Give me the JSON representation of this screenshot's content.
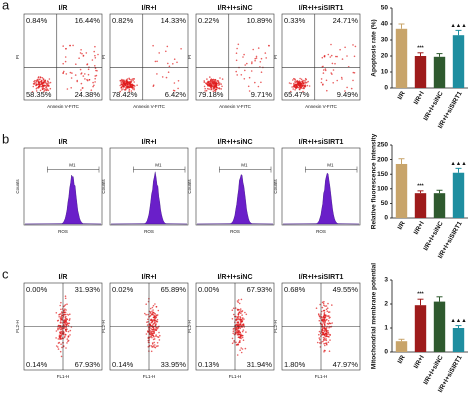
{
  "flow_rows": [
    {
      "panel": "a",
      "x_label": "Annexin V-FITC",
      "y_label": "PI",
      "plots": [
        {
          "title": "I/R",
          "quadrants": [
            "0.84%",
            "16.44%",
            "58.35%",
            "24.38%"
          ]
        },
        {
          "title": "I/R+I",
          "quadrants": [
            "0.82%",
            "14.33%",
            "78.42%",
            "6.42%"
          ]
        },
        {
          "title": "I/R+I+siNC",
          "quadrants": [
            "0.22%",
            "10.89%",
            "79.18%",
            "9.71%"
          ]
        },
        {
          "title": "I/R+I+siSIRT1",
          "quadrants": [
            "0.33%",
            "24.71%",
            "65.47%",
            "9.49%"
          ]
        }
      ]
    },
    {
      "panel": "b",
      "x_label": "ROS",
      "y_label": "Counts",
      "plots": [
        {
          "title": "I/R",
          "gate": "M1"
        },
        {
          "title": "I/R+I",
          "gate": "M1"
        },
        {
          "title": "I/R+I+siNC",
          "gate": "M1"
        },
        {
          "title": "I/R+I+siSIRT1",
          "gate": "M1"
        }
      ]
    },
    {
      "panel": "c",
      "x_label": "FL1-H",
      "y_label": "FL2-H",
      "plots": [
        {
          "title": "I/R",
          "quadrants": [
            "0.00%",
            "31.93%",
            "0.14%",
            "67.93%"
          ]
        },
        {
          "title": "I/R+I",
          "quadrants": [
            "0.02%",
            "65.89%",
            "0.14%",
            "33.95%"
          ]
        },
        {
          "title": "I/R+I+siNC",
          "quadrants": [
            "0.00%",
            "67.93%",
            "0.13%",
            "31.94%"
          ]
        },
        {
          "title": "I/R+I+siSIRT1",
          "quadrants": [
            "0.68%",
            "49.55%",
            "1.80%",
            "47.97%"
          ]
        }
      ]
    }
  ],
  "chart_data": [
    {
      "type": "bar",
      "y_label": "Apoptosis rate (%)",
      "categories": [
        "I/R",
        "I/R+I",
        "I/R+I+siNC",
        "I/R+I+siSIRT1"
      ],
      "values": [
        37,
        20,
        19.5,
        33
      ],
      "errors": [
        3,
        2,
        2,
        3
      ],
      "colors": [
        "#c8a46a",
        "#9e1b1b",
        "#2f5a2f",
        "#1f8ea0"
      ],
      "annotations": [
        null,
        "***",
        null,
        "▲▲▲"
      ],
      "ylim": [
        0,
        50
      ],
      "yticks": [
        0,
        10,
        20,
        30,
        40,
        50
      ]
    },
    {
      "type": "bar",
      "y_label": "Relative fluorescence intensity",
      "categories": [
        "I/R",
        "I/R+I",
        "I/R+I+siNC",
        "I/R+I+siSIRT1"
      ],
      "values": [
        185,
        85,
        85,
        155
      ],
      "errors": [
        18,
        8,
        10,
        15
      ],
      "colors": [
        "#c8a46a",
        "#9e1b1b",
        "#2f5a2f",
        "#1f8ea0"
      ],
      "annotations": [
        null,
        "***",
        null,
        "▲▲▲"
      ],
      "ylim": [
        0,
        250
      ],
      "yticks": [
        0,
        50,
        100,
        150,
        200,
        250
      ]
    },
    {
      "type": "bar",
      "y_label": "Mitochondrial membrane potential",
      "categories": [
        "I/R",
        "I/R+I",
        "I/R+I+siNC",
        "I/R+I+siSIRT1"
      ],
      "values": [
        0.45,
        1.95,
        2.1,
        1.0
      ],
      "errors": [
        0.08,
        0.25,
        0.2,
        0.1
      ],
      "colors": [
        "#c8a46a",
        "#9e1b1b",
        "#2f5a2f",
        "#1f8ea0"
      ],
      "annotations": [
        null,
        "***",
        null,
        "▲▲▲"
      ],
      "ylim": [
        0,
        3
      ],
      "yticks": [
        0,
        1,
        2,
        3
      ]
    }
  ]
}
